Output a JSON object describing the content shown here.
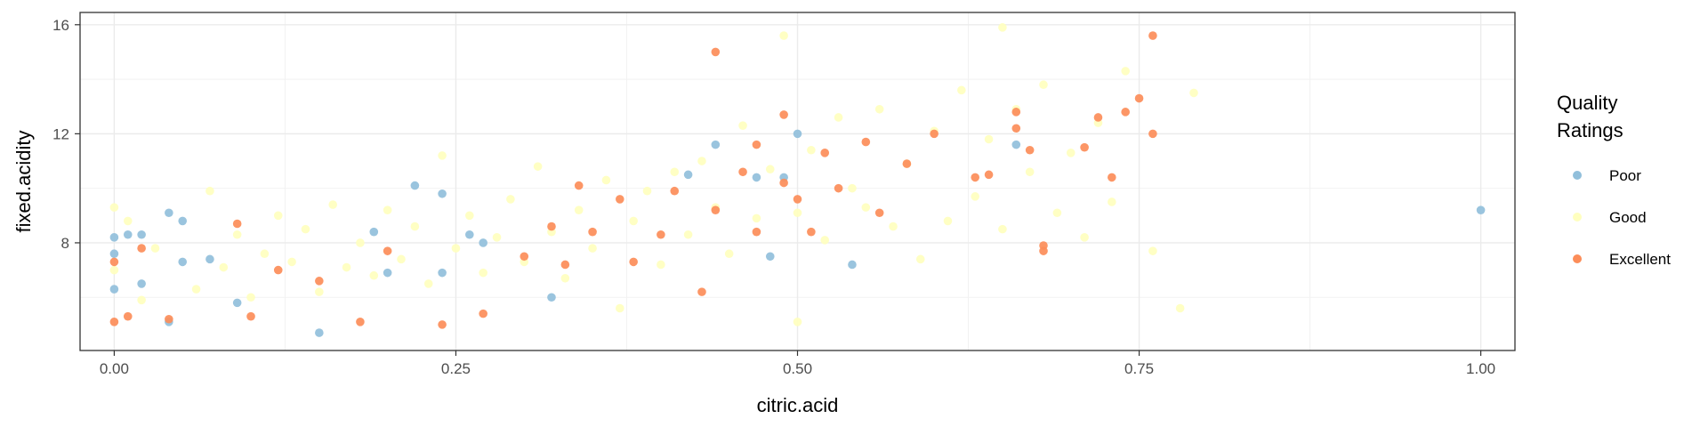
{
  "chart_data": {
    "type": "scatter",
    "xlabel": "citric.acid",
    "ylabel": "fixed.acidity",
    "xlim": [
      -0.025,
      1.025
    ],
    "ylim": [
      4.05,
      16.45
    ],
    "x_ticks": [
      0,
      0.25,
      0.5,
      0.75,
      1.0
    ],
    "x_tick_labels": [
      "0.00",
      "0.25",
      "0.50",
      "0.75",
      "1.00"
    ],
    "y_ticks": [
      8,
      12,
      16
    ],
    "y_tick_labels": [
      "8",
      "12",
      "16"
    ],
    "grid": true,
    "legend": {
      "title_lines": [
        "Quality",
        "Ratings"
      ],
      "placement": "right"
    },
    "series": [
      {
        "name": "Poor",
        "color": "#91bfdb",
        "points": [
          [
            0.0,
            8.2
          ],
          [
            0.0,
            7.6
          ],
          [
            0.0,
            6.3
          ],
          [
            0.01,
            8.3
          ],
          [
            0.02,
            8.3
          ],
          [
            0.02,
            6.5
          ],
          [
            0.04,
            9.1
          ],
          [
            0.04,
            5.1
          ],
          [
            0.05,
            8.8
          ],
          [
            0.05,
            7.3
          ],
          [
            0.07,
            7.4
          ],
          [
            0.09,
            5.8
          ],
          [
            0.15,
            4.7
          ],
          [
            0.19,
            8.4
          ],
          [
            0.2,
            6.9
          ],
          [
            0.22,
            10.1
          ],
          [
            0.24,
            9.8
          ],
          [
            0.24,
            6.9
          ],
          [
            0.26,
            8.3
          ],
          [
            0.27,
            8.0
          ],
          [
            0.32,
            6.0
          ],
          [
            0.42,
            10.5
          ],
          [
            0.44,
            11.6
          ],
          [
            0.47,
            10.4
          ],
          [
            0.48,
            7.5
          ],
          [
            0.49,
            10.4
          ],
          [
            0.5,
            12.0
          ],
          [
            0.54,
            7.2
          ],
          [
            0.66,
            11.6
          ],
          [
            1.0,
            9.2
          ]
        ]
      },
      {
        "name": "Good",
        "color": "#ffffbf",
        "points": [
          [
            0.0,
            9.3
          ],
          [
            0.0,
            7.0
          ],
          [
            0.01,
            8.8
          ],
          [
            0.02,
            5.9
          ],
          [
            0.03,
            7.8
          ],
          [
            0.06,
            6.3
          ],
          [
            0.07,
            9.9
          ],
          [
            0.08,
            7.1
          ],
          [
            0.09,
            8.3
          ],
          [
            0.1,
            6.0
          ],
          [
            0.11,
            7.6
          ],
          [
            0.12,
            9.0
          ],
          [
            0.13,
            7.3
          ],
          [
            0.14,
            8.5
          ],
          [
            0.15,
            6.2
          ],
          [
            0.16,
            9.4
          ],
          [
            0.17,
            7.1
          ],
          [
            0.18,
            8.0
          ],
          [
            0.19,
            6.8
          ],
          [
            0.2,
            9.2
          ],
          [
            0.21,
            7.4
          ],
          [
            0.22,
            8.6
          ],
          [
            0.23,
            6.5
          ],
          [
            0.24,
            11.2
          ],
          [
            0.25,
            7.8
          ],
          [
            0.26,
            9.0
          ],
          [
            0.27,
            6.9
          ],
          [
            0.28,
            8.2
          ],
          [
            0.29,
            9.6
          ],
          [
            0.3,
            7.3
          ],
          [
            0.31,
            10.8
          ],
          [
            0.32,
            8.4
          ],
          [
            0.33,
            6.7
          ],
          [
            0.34,
            9.2
          ],
          [
            0.35,
            7.8
          ],
          [
            0.36,
            10.3
          ],
          [
            0.37,
            5.6
          ],
          [
            0.38,
            8.8
          ],
          [
            0.39,
            9.9
          ],
          [
            0.4,
            7.2
          ],
          [
            0.41,
            10.6
          ],
          [
            0.42,
            8.3
          ],
          [
            0.43,
            11.0
          ],
          [
            0.44,
            9.3
          ],
          [
            0.45,
            7.6
          ],
          [
            0.46,
            12.3
          ],
          [
            0.47,
            8.9
          ],
          [
            0.48,
            10.7
          ],
          [
            0.49,
            15.6
          ],
          [
            0.5,
            5.1
          ],
          [
            0.5,
            9.1
          ],
          [
            0.51,
            11.4
          ],
          [
            0.52,
            8.1
          ],
          [
            0.53,
            12.6
          ],
          [
            0.54,
            10.0
          ],
          [
            0.55,
            9.3
          ],
          [
            0.56,
            12.9
          ],
          [
            0.57,
            8.6
          ],
          [
            0.58,
            10.9
          ],
          [
            0.59,
            7.4
          ],
          [
            0.6,
            12.1
          ],
          [
            0.61,
            8.8
          ],
          [
            0.62,
            13.6
          ],
          [
            0.63,
            9.7
          ],
          [
            0.64,
            11.8
          ],
          [
            0.65,
            15.9
          ],
          [
            0.65,
            8.5
          ],
          [
            0.66,
            12.9
          ],
          [
            0.67,
            10.6
          ],
          [
            0.68,
            13.8
          ],
          [
            0.69,
            9.1
          ],
          [
            0.7,
            11.3
          ],
          [
            0.71,
            8.2
          ],
          [
            0.72,
            12.4
          ],
          [
            0.73,
            9.5
          ],
          [
            0.74,
            14.3
          ],
          [
            0.76,
            7.7
          ],
          [
            0.78,
            5.6
          ],
          [
            0.79,
            13.5
          ]
        ]
      },
      {
        "name": "Excellent",
        "color": "#fc8d59",
        "points": [
          [
            0.0,
            5.1
          ],
          [
            0.0,
            7.3
          ],
          [
            0.01,
            5.3
          ],
          [
            0.02,
            7.8
          ],
          [
            0.04,
            5.2
          ],
          [
            0.09,
            8.7
          ],
          [
            0.1,
            5.3
          ],
          [
            0.12,
            7.0
          ],
          [
            0.15,
            6.6
          ],
          [
            0.18,
            5.1
          ],
          [
            0.2,
            7.7
          ],
          [
            0.24,
            5.0
          ],
          [
            0.27,
            5.4
          ],
          [
            0.3,
            7.5
          ],
          [
            0.32,
            8.6
          ],
          [
            0.33,
            7.2
          ],
          [
            0.34,
            10.1
          ],
          [
            0.35,
            8.4
          ],
          [
            0.37,
            9.6
          ],
          [
            0.38,
            7.3
          ],
          [
            0.4,
            8.3
          ],
          [
            0.41,
            9.9
          ],
          [
            0.43,
            6.2
          ],
          [
            0.44,
            15.0
          ],
          [
            0.44,
            9.2
          ],
          [
            0.46,
            10.6
          ],
          [
            0.47,
            8.4
          ],
          [
            0.47,
            11.6
          ],
          [
            0.49,
            12.7
          ],
          [
            0.49,
            10.2
          ],
          [
            0.5,
            9.6
          ],
          [
            0.51,
            8.4
          ],
          [
            0.52,
            11.3
          ],
          [
            0.53,
            10.0
          ],
          [
            0.55,
            11.7
          ],
          [
            0.56,
            9.1
          ],
          [
            0.58,
            10.9
          ],
          [
            0.6,
            12.0
          ],
          [
            0.63,
            10.4
          ],
          [
            0.64,
            10.5
          ],
          [
            0.66,
            12.8
          ],
          [
            0.66,
            12.2
          ],
          [
            0.67,
            11.4
          ],
          [
            0.68,
            7.9
          ],
          [
            0.68,
            7.7
          ],
          [
            0.71,
            11.5
          ],
          [
            0.72,
            12.6
          ],
          [
            0.73,
            10.4
          ],
          [
            0.74,
            12.8
          ],
          [
            0.75,
            13.3
          ],
          [
            0.76,
            15.6
          ],
          [
            0.76,
            12.0
          ]
        ]
      }
    ]
  }
}
